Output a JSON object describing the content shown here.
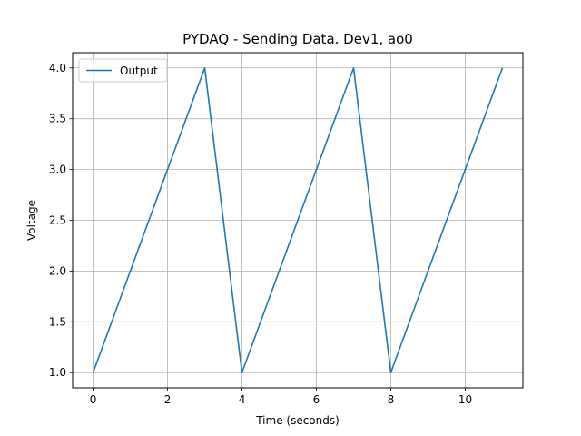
{
  "chart_data": {
    "type": "line",
    "title": "PYDAQ - Sending Data. Dev1, ao0",
    "xlabel": "Time (seconds)",
    "ylabel": "Voltage",
    "xlim": [
      -0.55,
      11.55
    ],
    "ylim": [
      0.85,
      4.15
    ],
    "xticks": [
      0,
      2,
      4,
      6,
      8,
      10
    ],
    "xtick_labels": [
      "0",
      "2",
      "4",
      "6",
      "8",
      "10"
    ],
    "yticks": [
      1.0,
      1.5,
      2.0,
      2.5,
      3.0,
      3.5,
      4.0
    ],
    "ytick_labels": [
      "1.0",
      "1.5",
      "2.0",
      "2.5",
      "3.0",
      "3.5",
      "4.0"
    ],
    "grid": true,
    "legend": {
      "position": "top-left"
    },
    "series": [
      {
        "name": "Output",
        "color": "#1f77b4",
        "x": [
          0,
          1,
          2,
          3,
          4,
          5,
          6,
          7,
          8,
          9,
          10,
          11
        ],
        "y": [
          1,
          2,
          3,
          4,
          1,
          2,
          3,
          4,
          1,
          2,
          3,
          4
        ]
      }
    ]
  }
}
